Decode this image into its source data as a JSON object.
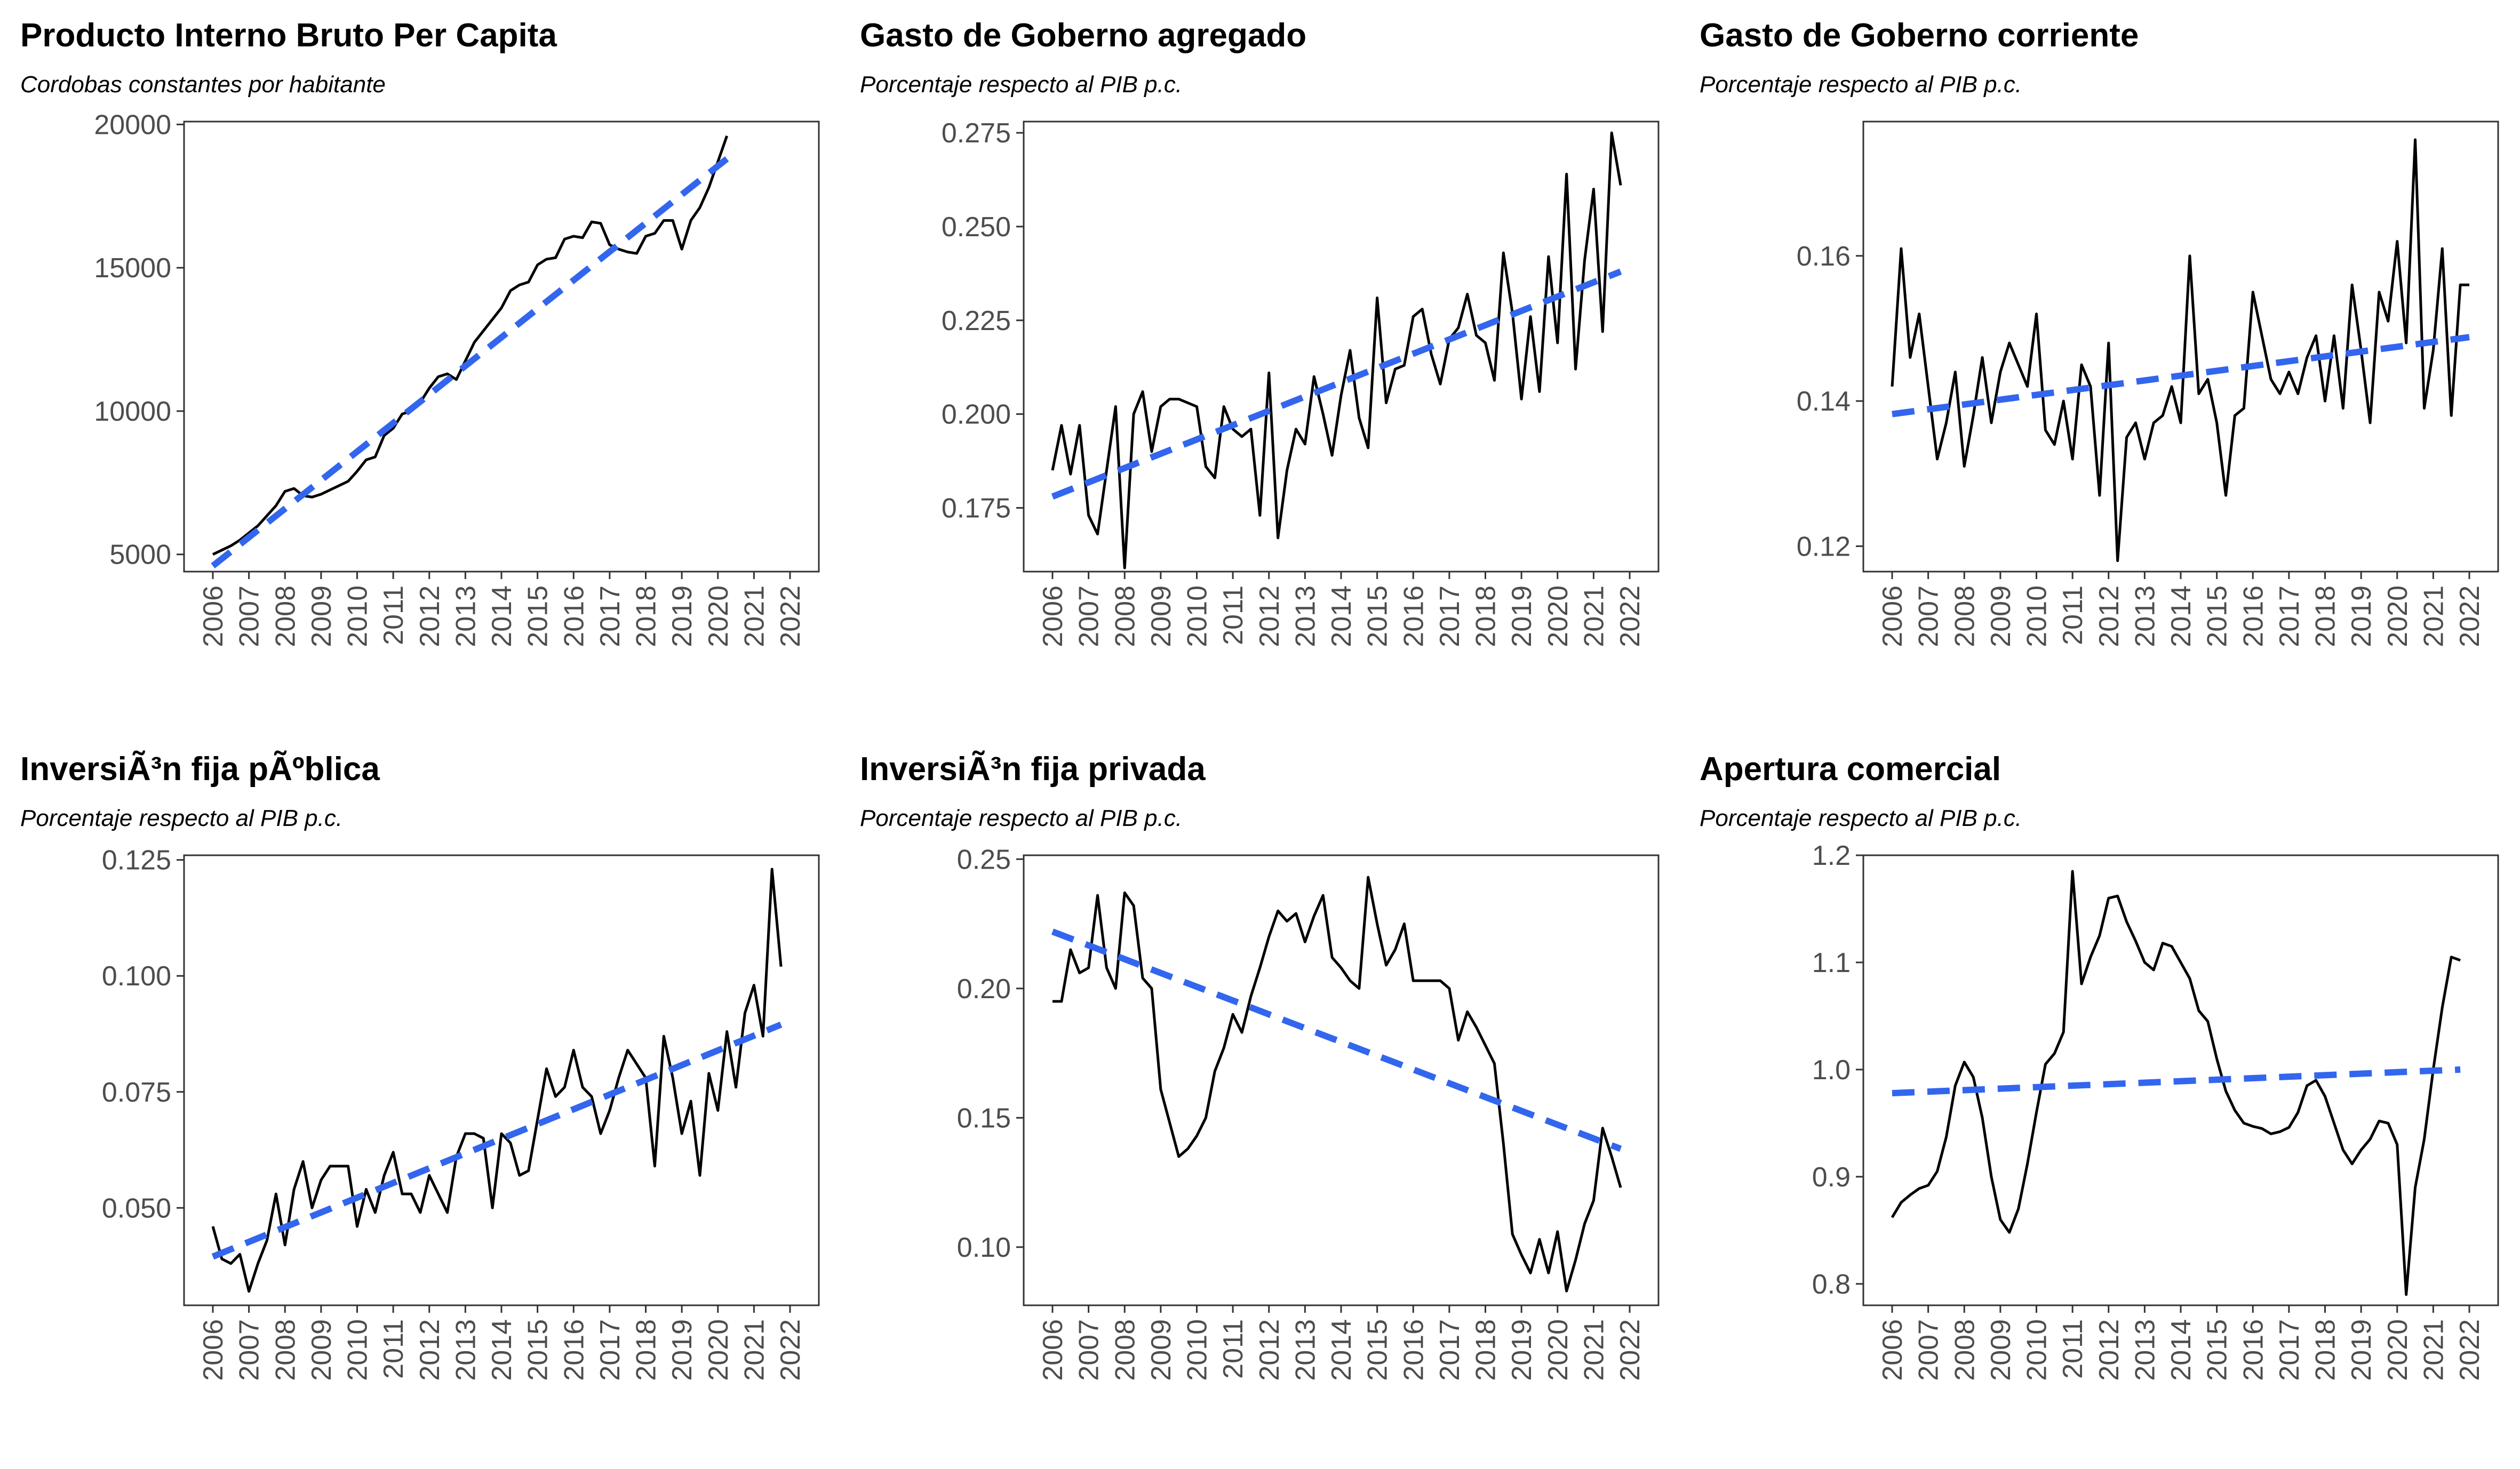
{
  "colors": {
    "series": "#000000",
    "trend": "#3366ee",
    "axis": "#333333",
    "tick_text": "#4d4d4d"
  },
  "chart_data": [
    {
      "type": "line",
      "title": "Producto Interno Bruto Per Capita",
      "subtitle": "Cordobas constantes por habitante",
      "xlim": [
        2006,
        2022
      ],
      "ylim": [
        4400,
        20100
      ],
      "x_ticks": [
        2006,
        2007,
        2008,
        2009,
        2010,
        2011,
        2012,
        2013,
        2014,
        2015,
        2016,
        2017,
        2018,
        2019,
        2020,
        2021,
        2022
      ],
      "y_ticks": [
        5000,
        10000,
        15000,
        20000
      ],
      "y_tick_labels": [
        "5000",
        "10000",
        "15000",
        "20000"
      ],
      "x_start": 2006,
      "x_step": 0.25,
      "series": [
        {
          "values": [
            5000,
            5150,
            5300,
            5500,
            5750,
            6000,
            6350,
            6700,
            7200,
            7300,
            7050,
            7000,
            7100,
            7250,
            7400,
            7550,
            7900,
            8300,
            8400,
            9150,
            9400,
            9900,
            10000,
            10300,
            10800,
            11200,
            11300,
            11100,
            11750,
            12400,
            12800,
            13200,
            13600,
            14200,
            14400,
            14500,
            15100,
            15300,
            15350,
            16000,
            16100,
            16050,
            16600,
            16550,
            15800,
            15650,
            15550,
            15500,
            16100,
            16200,
            16650,
            16650,
            15650,
            16650,
            17100,
            17800,
            18700,
            19600
          ]
        },
        {
          "values": [
            4600,
            18800
          ],
          "style": "dashed"
        }
      ]
    },
    {
      "type": "line",
      "title": "Gasto de Goberno agregado",
      "subtitle": "Porcentaje respecto al PIB p.c.",
      "xlim": [
        2006,
        2022
      ],
      "ylim": [
        0.158,
        0.278
      ],
      "x_ticks": [
        2006,
        2007,
        2008,
        2009,
        2010,
        2011,
        2012,
        2013,
        2014,
        2015,
        2016,
        2017,
        2018,
        2019,
        2020,
        2021,
        2022
      ],
      "y_ticks": [
        0.175,
        0.2,
        0.225,
        0.25,
        0.275
      ],
      "y_tick_labels": [
        "0.175",
        "0.200",
        "0.225",
        "0.250",
        "0.275"
      ],
      "x_start": 2006,
      "x_step": 0.25,
      "series": [
        {
          "values": [
            0.185,
            0.197,
            0.184,
            0.197,
            0.173,
            0.168,
            0.185,
            0.202,
            0.159,
            0.2,
            0.206,
            0.19,
            0.202,
            0.204,
            0.204,
            0.203,
            0.202,
            0.186,
            0.183,
            0.202,
            0.196,
            0.194,
            0.196,
            0.173,
            0.211,
            0.167,
            0.185,
            0.196,
            0.192,
            0.21,
            0.2,
            0.189,
            0.205,
            0.217,
            0.199,
            0.191,
            0.231,
            0.203,
            0.212,
            0.213,
            0.226,
            0.228,
            0.216,
            0.208,
            0.22,
            0.223,
            0.232,
            0.221,
            0.219,
            0.209,
            0.243,
            0.227,
            0.204,
            0.226,
            0.206,
            0.242,
            0.219,
            0.264,
            0.212,
            0.241,
            0.26,
            0.222,
            0.275,
            0.261
          ]
        },
        {
          "values": [
            0.178,
            0.238
          ],
          "style": "dashed"
        }
      ]
    },
    {
      "type": "line",
      "title": "Gasto de Goberno corriente",
      "subtitle": "Porcentaje respecto al PIB p.c.",
      "xlim": [
        2006,
        2022
      ],
      "ylim": [
        0.1165,
        0.1785
      ],
      "x_ticks": [
        2006,
        2007,
        2008,
        2009,
        2010,
        2011,
        2012,
        2013,
        2014,
        2015,
        2016,
        2017,
        2018,
        2019,
        2020,
        2021,
        2022
      ],
      "y_ticks": [
        0.12,
        0.14,
        0.16
      ],
      "y_tick_labels": [
        "0.12",
        "0.14",
        "0.16"
      ],
      "x_start": 2006,
      "x_step": 0.25,
      "series": [
        {
          "values": [
            0.142,
            0.161,
            0.146,
            0.152,
            0.142,
            0.132,
            0.137,
            0.144,
            0.131,
            0.138,
            0.146,
            0.137,
            0.144,
            0.148,
            0.145,
            0.142,
            0.152,
            0.136,
            0.134,
            0.14,
            0.132,
            0.145,
            0.142,
            0.127,
            0.148,
            0.118,
            0.135,
            0.137,
            0.132,
            0.137,
            0.138,
            0.142,
            0.137,
            0.16,
            0.141,
            0.143,
            0.137,
            0.127,
            0.138,
            0.139,
            0.155,
            0.149,
            0.143,
            0.141,
            0.144,
            0.141,
            0.146,
            0.149,
            0.14,
            0.149,
            0.139,
            0.156,
            0.147,
            0.137,
            0.155,
            0.151,
            0.162,
            0.148,
            0.176,
            0.139,
            0.147,
            0.161,
            0.138,
            0.156,
            0.156
          ]
        },
        {
          "values": [
            0.1382,
            0.1488
          ],
          "style": "dashed"
        }
      ]
    },
    {
      "type": "line",
      "title": "InversiÃ³n fija pÃºblica",
      "subtitle": "Porcentaje respecto al PIB p.c.",
      "xlim": [
        2006,
        2022
      ],
      "ylim": [
        0.029,
        0.126
      ],
      "x_ticks": [
        2006,
        2007,
        2008,
        2009,
        2010,
        2011,
        2012,
        2013,
        2014,
        2015,
        2016,
        2017,
        2018,
        2019,
        2020,
        2021,
        2022
      ],
      "y_ticks": [
        0.05,
        0.075,
        0.1,
        0.125
      ],
      "y_tick_labels": [
        "0.050",
        "0.075",
        "0.100",
        "0.125"
      ],
      "x_start": 2006,
      "x_step": 0.25,
      "series": [
        {
          "values": [
            0.046,
            0.039,
            0.038,
            0.04,
            0.032,
            0.038,
            0.043,
            0.053,
            0.042,
            0.054,
            0.06,
            0.05,
            0.056,
            0.059,
            0.059,
            0.059,
            0.046,
            0.054,
            0.049,
            0.057,
            0.062,
            0.053,
            0.053,
            0.049,
            0.057,
            0.053,
            0.049,
            0.061,
            0.066,
            0.066,
            0.065,
            0.05,
            0.066,
            0.064,
            0.057,
            0.058,
            0.069,
            0.08,
            0.074,
            0.076,
            0.084,
            0.076,
            0.074,
            0.066,
            0.071,
            0.078,
            0.084,
            0.081,
            0.078,
            0.059,
            0.087,
            0.078,
            0.066,
            0.073,
            0.057,
            0.079,
            0.071,
            0.088,
            0.076,
            0.092,
            0.098,
            0.087,
            0.123,
            0.102
          ]
        },
        {
          "values": [
            0.0395,
            0.0895
          ],
          "style": "dashed"
        }
      ]
    },
    {
      "type": "line",
      "title": "InversiÃ³n fija privada",
      "subtitle": "Porcentaje respecto al PIB p.c.",
      "xlim": [
        2006,
        2022
      ],
      "ylim": [
        0.0775,
        0.2515
      ],
      "x_ticks": [
        2006,
        2007,
        2008,
        2009,
        2010,
        2011,
        2012,
        2013,
        2014,
        2015,
        2016,
        2017,
        2018,
        2019,
        2020,
        2021,
        2022
      ],
      "y_ticks": [
        0.1,
        0.15,
        0.2,
        0.25
      ],
      "y_tick_labels": [
        "0.10",
        "0.15",
        "0.20",
        "0.25"
      ],
      "x_start": 2006,
      "x_step": 0.25,
      "series": [
        {
          "values": [
            0.195,
            0.195,
            0.215,
            0.206,
            0.208,
            0.236,
            0.208,
            0.2,
            0.237,
            0.232,
            0.204,
            0.2,
            0.161,
            0.148,
            0.135,
            0.138,
            0.143,
            0.15,
            0.168,
            0.177,
            0.19,
            0.183,
            0.197,
            0.208,
            0.22,
            0.23,
            0.226,
            0.229,
            0.218,
            0.228,
            0.236,
            0.212,
            0.208,
            0.203,
            0.2,
            0.243,
            0.225,
            0.209,
            0.215,
            0.225,
            0.203,
            0.203,
            0.203,
            0.203,
            0.2,
            0.18,
            0.191,
            0.185,
            0.178,
            0.171,
            0.14,
            0.105,
            0.097,
            0.09,
            0.103,
            0.09,
            0.106,
            0.083,
            0.095,
            0.109,
            0.118,
            0.146,
            0.135,
            0.123
          ]
        },
        {
          "values": [
            0.222,
            0.138
          ],
          "style": "dashed"
        }
      ]
    },
    {
      "type": "line",
      "title": "Apertura comercial",
      "subtitle": "Porcentaje respecto al PIB p.c.",
      "xlim": [
        2006,
        2022
      ],
      "ylim": [
        0.78,
        1.2
      ],
      "x_ticks": [
        2006,
        2007,
        2008,
        2009,
        2010,
        2011,
        2012,
        2013,
        2014,
        2015,
        2016,
        2017,
        2018,
        2019,
        2020,
        2021,
        2022
      ],
      "y_ticks": [
        0.8,
        0.9,
        1.0,
        1.1,
        1.2
      ],
      "y_tick_labels": [
        "0.8",
        "0.9",
        "1.0",
        "1.1",
        "1.2"
      ],
      "x_start": 2006,
      "x_step": 0.25,
      "series": [
        {
          "values": [
            0.862,
            0.876,
            0.883,
            0.889,
            0.892,
            0.905,
            0.937,
            0.985,
            1.007,
            0.993,
            0.955,
            0.9,
            0.86,
            0.848,
            0.87,
            0.912,
            0.96,
            1.005,
            1.015,
            1.035,
            1.185,
            1.08,
            1.105,
            1.125,
            1.16,
            1.162,
            1.138,
            1.12,
            1.1,
            1.093,
            1.118,
            1.115,
            1.1,
            1.085,
            1.055,
            1.045,
            1.01,
            0.98,
            0.962,
            0.95,
            0.947,
            0.945,
            0.94,
            0.942,
            0.946,
            0.96,
            0.985,
            0.99,
            0.975,
            0.95,
            0.925,
            0.912,
            0.925,
            0.935,
            0.952,
            0.95,
            0.93,
            0.79,
            0.89,
            0.935,
            1.0,
            1.058,
            1.105,
            1.102
          ]
        },
        {
          "values": [
            0.978,
            1.0
          ],
          "style": "dashed"
        }
      ]
    }
  ]
}
